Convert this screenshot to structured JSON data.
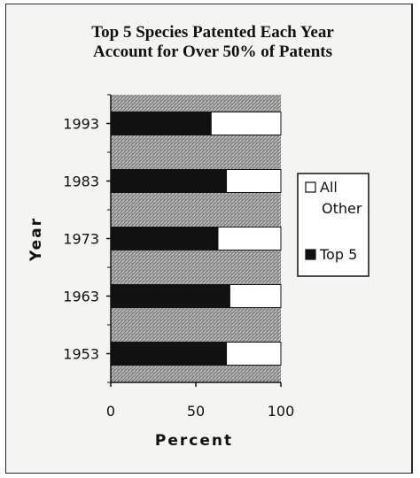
{
  "chart_data": {
    "type": "bar",
    "orientation": "horizontal",
    "stacked": true,
    "title": "Top 5 Species Patented Each Year",
    "subtitle": "Account for Over 50% of Patents",
    "xlabel": "Percent",
    "ylabel": "Year",
    "categories": [
      "1993",
      "1983",
      "1973",
      "1963",
      "1953"
    ],
    "x_ticks": [
      "0",
      "50",
      "100"
    ],
    "xlim": [
      0,
      100
    ],
    "series": [
      {
        "name": "Top 5",
        "color": "#111111",
        "values": [
          59,
          68,
          63,
          70,
          68
        ]
      },
      {
        "name": "All Other",
        "color": "#ffffff",
        "values": [
          41,
          32,
          37,
          30,
          32
        ]
      }
    ],
    "legend": {
      "placement": "right",
      "entries": [
        {
          "label_lines": [
            "All",
            "Other"
          ],
          "color": "#ffffff"
        },
        {
          "label_lines": [
            "Top 5"
          ],
          "color": "#111111"
        }
      ]
    },
    "background": "hatched gray"
  }
}
